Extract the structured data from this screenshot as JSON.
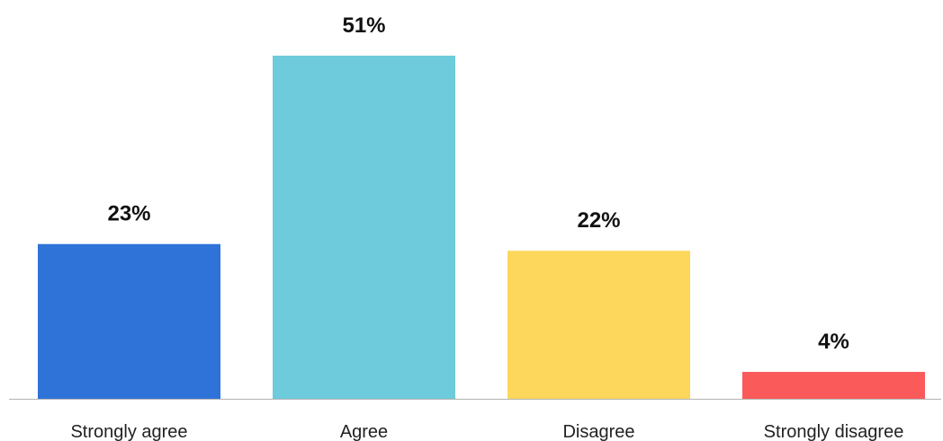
{
  "chart_data": {
    "type": "bar",
    "categories": [
      "Strongly agree",
      "Agree",
      "Disagree",
      "Strongly disagree"
    ],
    "values": [
      23,
      51,
      22,
      4
    ],
    "value_labels": [
      "23%",
      "51%",
      "22%",
      "4%"
    ],
    "colors": [
      "#2f73d9",
      "#6dcbdc",
      "#fdd65c",
      "#fa5a5a"
    ],
    "axis_color": "#b3b3b3",
    "ylim": [
      0,
      51
    ],
    "grid": false,
    "legend": "none"
  }
}
